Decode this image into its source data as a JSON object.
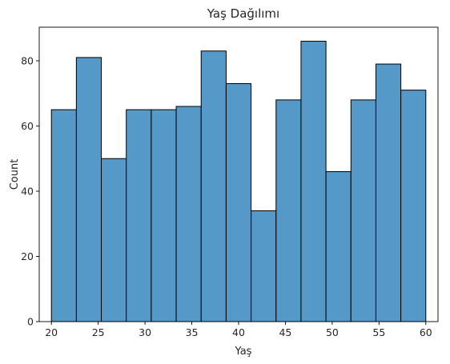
{
  "chart_data": {
    "type": "bar",
    "title": "Yaş Dağılımı",
    "xlabel": "Yaş",
    "ylabel": "Count",
    "bin_edges": [
      20,
      22.667,
      25.333,
      28,
      30.667,
      33.333,
      36,
      38.667,
      41.333,
      44,
      46.667,
      49.333,
      52,
      54.667,
      57.333,
      60
    ],
    "values": [
      65,
      81,
      50,
      65,
      65,
      66,
      83,
      73,
      34,
      68,
      86,
      46,
      68,
      79,
      71
    ],
    "xlim": [
      18.7,
      61.3
    ],
    "ylim": [
      0,
      90.3
    ],
    "xticks": [
      20,
      25,
      30,
      35,
      40,
      45,
      50,
      55,
      60
    ],
    "yticks": [
      0,
      20,
      40,
      60,
      80
    ],
    "bar_color": "#5599c8",
    "edge_color": "#000000",
    "grid": false
  }
}
